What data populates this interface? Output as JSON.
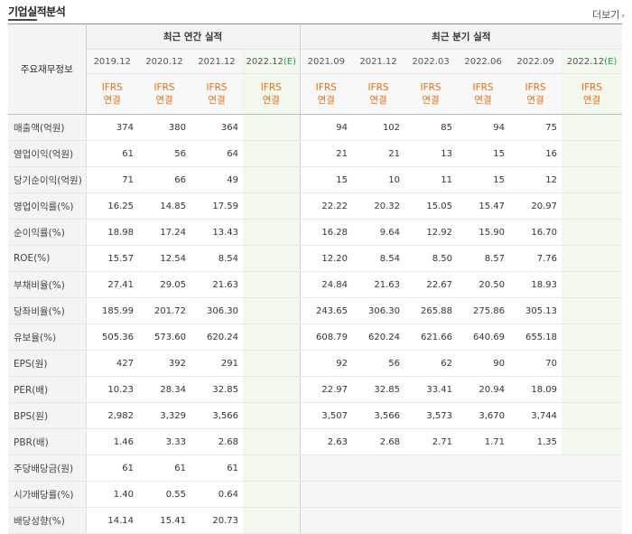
{
  "header": {
    "title": "기업실적분석",
    "more": "더보기",
    "more_icon": "chevron-right-icon"
  },
  "table": {
    "corner": "주요재무정보",
    "groups": {
      "annual": "최근 연간 실적",
      "quarterly": "최근 분기 실적"
    },
    "periods": [
      "2019.12",
      "2020.12",
      "2021.12",
      "2022.12(E)",
      "2021.09",
      "2021.12",
      "2022.03",
      "2022.06",
      "2022.09",
      "2022.12(E)"
    ],
    "basis": {
      "line1": "IFRS",
      "line2": "연결"
    },
    "rows": [
      {
        "label": "매출액(억원)",
        "values": [
          "374",
          "380",
          "364",
          "",
          "94",
          "102",
          "85",
          "94",
          "75",
          ""
        ]
      },
      {
        "label": "영업이익(억원)",
        "values": [
          "61",
          "56",
          "64",
          "",
          "21",
          "21",
          "13",
          "15",
          "16",
          ""
        ]
      },
      {
        "label": "당기순이익(억원)",
        "values": [
          "71",
          "66",
          "49",
          "",
          "15",
          "10",
          "11",
          "15",
          "12",
          ""
        ]
      },
      {
        "label": "영업이익률(%)",
        "values": [
          "16.25",
          "14.85",
          "17.59",
          "",
          "22.22",
          "20.32",
          "15.05",
          "15.47",
          "20.97",
          ""
        ]
      },
      {
        "label": "순이익률(%)",
        "values": [
          "18.98",
          "17.24",
          "13.43",
          "",
          "16.28",
          "9.64",
          "12.92",
          "15.90",
          "16.70",
          ""
        ]
      },
      {
        "label": "ROE(%)",
        "values": [
          "15.57",
          "12.54",
          "8.54",
          "",
          "12.20",
          "8.54",
          "8.50",
          "8.57",
          "7.76",
          ""
        ]
      },
      {
        "label": "부채비율(%)",
        "values": [
          "27.41",
          "29.05",
          "21.63",
          "",
          "24.84",
          "21.63",
          "22.67",
          "20.50",
          "18.93",
          ""
        ]
      },
      {
        "label": "당좌비율(%)",
        "values": [
          "185.99",
          "201.72",
          "306.30",
          "",
          "243.65",
          "306.30",
          "265.88",
          "275.86",
          "305.13",
          ""
        ]
      },
      {
        "label": "유보율(%)",
        "values": [
          "505.36",
          "573.60",
          "620.24",
          "",
          "608.79",
          "620.24",
          "621.66",
          "640.69",
          "655.18",
          ""
        ]
      },
      {
        "label": "EPS(원)",
        "values": [
          "427",
          "392",
          "291",
          "",
          "92",
          "56",
          "62",
          "90",
          "70",
          ""
        ]
      },
      {
        "label": "PER(배)",
        "values": [
          "10.23",
          "28.34",
          "32.85",
          "",
          "22.97",
          "32.85",
          "33.41",
          "20.94",
          "18.09",
          ""
        ]
      },
      {
        "label": "BPS(원)",
        "values": [
          "2,982",
          "3,329",
          "3,566",
          "",
          "3,507",
          "3,566",
          "3,573",
          "3,670",
          "3,744",
          ""
        ]
      },
      {
        "label": "PBR(배)",
        "values": [
          "1.46",
          "3.33",
          "2.68",
          "",
          "2.63",
          "2.68",
          "2.71",
          "1.71",
          "1.35",
          ""
        ]
      },
      {
        "label": "주당배당금(원)",
        "values": [
          "61",
          "61",
          "61",
          "",
          "",
          "",
          "",
          "",
          "",
          ""
        ]
      },
      {
        "label": "시가배당률(%)",
        "values": [
          "1.40",
          "0.55",
          "0.64",
          "",
          "",
          "",
          "",
          "",
          "",
          ""
        ]
      },
      {
        "label": "배당성향(%)",
        "values": [
          "14.14",
          "15.41",
          "20.73",
          "",
          "",
          "",
          "",
          "",
          "",
          ""
        ]
      }
    ]
  },
  "colors": {
    "basis": "#e0711a",
    "estimate_bg": "#f3f8ef",
    "estimate_label": "#2a9a52"
  }
}
